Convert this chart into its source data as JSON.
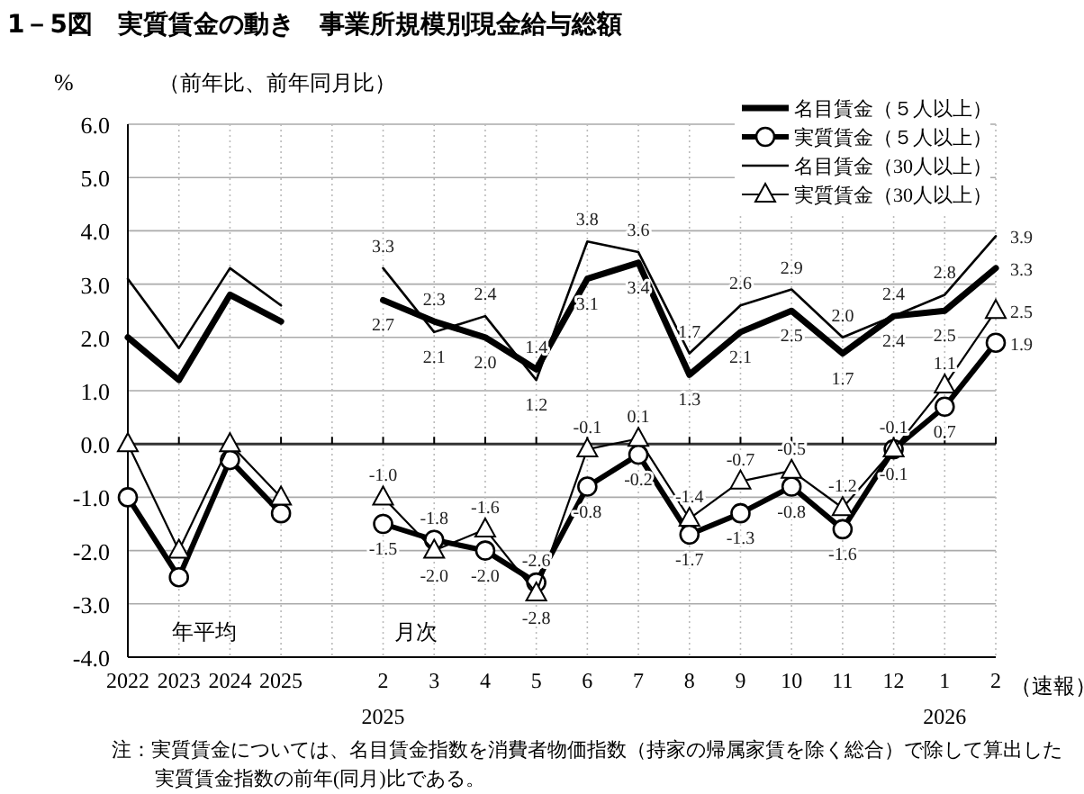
{
  "chart_data": {
    "type": "line",
    "title": "1－5図　実質賃金の動き　事業所規模別現金給与総額",
    "subtitle": "（前年比、前年同月比）",
    "ylabel": "%",
    "categories": [
      "2022",
      "2023",
      "2024",
      "2025",
      null,
      "2",
      "3",
      "4",
      "5",
      "6",
      "7",
      "8",
      "9",
      "10",
      "11",
      "12",
      "1",
      "2"
    ],
    "series": [
      {
        "name": "名目賃金（５人以上）",
        "color": "#000000",
        "marker": "none",
        "values": [
          2.0,
          1.2,
          2.8,
          2.3,
          null,
          2.7,
          2.3,
          2.0,
          1.4,
          3.1,
          3.4,
          1.3,
          2.1,
          2.5,
          1.7,
          2.4,
          2.5,
          3.3
        ],
        "value_labels": [
          null,
          null,
          null,
          null,
          null,
          "2.7",
          "2.3",
          "2.0",
          "1.4",
          "3.1",
          "3.4",
          "1.3",
          "2.1",
          "2.5",
          "1.7",
          "2.4",
          "2.5",
          "3.3"
        ]
      },
      {
        "name": "実質賃金（５人以上）",
        "color": "#000000",
        "marker": "circle",
        "values": [
          -1.0,
          -2.5,
          -0.3,
          -1.3,
          null,
          -1.5,
          -1.8,
          -2.0,
          -2.6,
          -0.8,
          -0.2,
          -1.7,
          -1.3,
          -0.8,
          -1.6,
          -0.1,
          0.7,
          1.9
        ],
        "value_labels": [
          null,
          null,
          null,
          null,
          null,
          "-1.5",
          "-1.8",
          "-2.0",
          "-2.6",
          "-0.8",
          "-0.2",
          "-1.7",
          "-1.3",
          "-0.8",
          "-1.6",
          "-0.1",
          "0.7",
          "1.9"
        ]
      },
      {
        "name": "名目賃金（30人以上）",
        "color": "#000000",
        "marker": "none",
        "values": [
          3.1,
          1.8,
          3.3,
          2.6,
          null,
          3.3,
          2.1,
          2.4,
          1.2,
          3.8,
          3.6,
          1.7,
          2.6,
          2.9,
          2.0,
          2.4,
          2.8,
          3.9
        ],
        "value_labels": [
          null,
          null,
          null,
          null,
          null,
          "3.3",
          "2.1",
          "2.4",
          "1.2",
          "3.8",
          "3.6",
          "1.7",
          "2.6",
          "2.9",
          "2.0",
          "2.4",
          "2.8",
          "3.9"
        ]
      },
      {
        "name": "実質賃金（30人以上）",
        "color": "#000000",
        "marker": "triangle",
        "values": [
          0.0,
          -2.0,
          0.0,
          -1.0,
          null,
          -1.0,
          -2.0,
          -1.6,
          -2.8,
          -0.1,
          0.1,
          -1.4,
          -0.7,
          -0.5,
          -1.2,
          -0.1,
          1.1,
          2.5
        ],
        "value_labels": [
          null,
          null,
          null,
          null,
          null,
          "-1.0",
          "-2.0",
          "-1.6",
          "-2.8",
          "-0.1",
          "0.1",
          "-1.4",
          "-0.7",
          "-0.5",
          "-1.2",
          "-0.1",
          "1.1",
          "2.5"
        ]
      }
    ],
    "ylim": [
      -4,
      6
    ],
    "yticks": [
      {
        "value": -4,
        "label": "-4.0"
      },
      {
        "value": -3,
        "label": "-3.0"
      },
      {
        "value": -2,
        "label": "-2.0"
      },
      {
        "value": -1,
        "label": "-1.0"
      },
      {
        "value": 0,
        "label": "0.0"
      },
      {
        "value": 1,
        "label": "1.0"
      },
      {
        "value": 2,
        "label": "2.0"
      },
      {
        "value": 3,
        "label": "3.0"
      },
      {
        "value": 4,
        "label": "4.0"
      },
      {
        "value": 5,
        "label": "5.0"
      },
      {
        "value": 6,
        "label": "6.0"
      }
    ],
    "grid": true,
    "legend": "top right",
    "annotations": [
      "年平均",
      "月次",
      "2025",
      "2026",
      "（速報）",
      "注：実質賃金については、名目賃金指数を消費者物価指数（持家の帰属家賃を除く総合）で除して算出した",
      "実質賃金指数の前年(同月)比である。"
    ]
  }
}
